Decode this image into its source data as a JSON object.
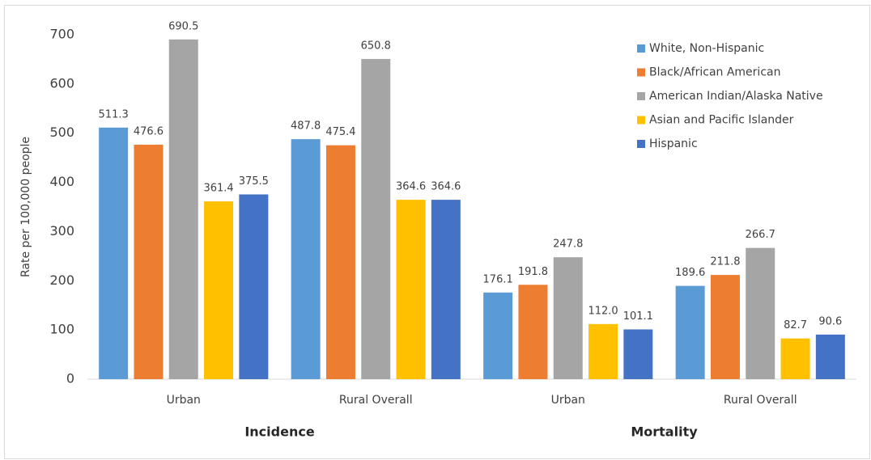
{
  "chart_data": {
    "type": "bar",
    "y_label": "Rate per 100,000 people",
    "categories": [
      "Urban",
      "Rural Overall",
      "Urban",
      "Rural Overall"
    ],
    "groups": [
      "Incidence",
      "Mortality"
    ],
    "series": [
      {
        "name": "White, Non-Hispanic",
        "color": "#5b9bd5",
        "values": [
          511.3,
          487.8,
          176.1,
          189.6
        ],
        "value_labels": [
          "511.3",
          "487.8",
          "176.1",
          "189.6"
        ]
      },
      {
        "name": "Black/African American",
        "color": "#ed7d31",
        "values": [
          476.6,
          475.4,
          191.8,
          211.8
        ],
        "value_labels": [
          "476.6",
          "475.4",
          "191.8",
          "211.8"
        ]
      },
      {
        "name": "American Indian/Alaska Native",
        "color": "#a5a5a5",
        "values": [
          690.5,
          650.8,
          247.8,
          266.7
        ],
        "value_labels": [
          "690.5",
          "650.8",
          "247.8",
          "266.7"
        ]
      },
      {
        "name": "Asian and Pacific Islander",
        "color": "#ffc000",
        "values": [
          361.4,
          364.6,
          112.0,
          82.7
        ],
        "value_labels": [
          "361.4",
          "364.6",
          "112.0",
          "82.7"
        ]
      },
      {
        "name": "Hispanic",
        "color": "#4472c4",
        "values": [
          375.5,
          364.6,
          101.1,
          90.6
        ],
        "value_labels": [
          "375.5",
          "364.6",
          "101.1",
          "90.6"
        ]
      }
    ],
    "ylim": [
      0,
      700
    ],
    "yticks": [
      0,
      100,
      200,
      300,
      400,
      500,
      600,
      700
    ],
    "grid": false,
    "legend": "top-right"
  }
}
